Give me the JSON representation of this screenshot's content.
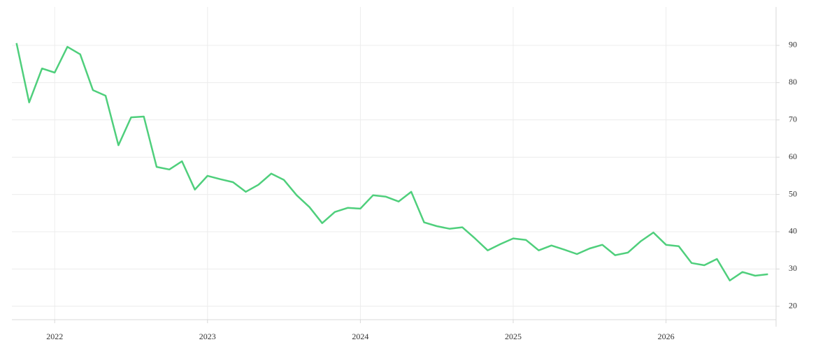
{
  "chart_data": {
    "type": "line",
    "x": [
      2021.75,
      2021.833,
      2021.917,
      2022,
      2022.083,
      2022.167,
      2022.25,
      2022.333,
      2022.417,
      2022.5,
      2022.583,
      2022.667,
      2022.75,
      2022.833,
      2022.917,
      2023,
      2023.083,
      2023.167,
      2023.25,
      2023.333,
      2023.417,
      2023.5,
      2023.583,
      2023.667,
      2023.75,
      2023.833,
      2023.917,
      2024,
      2024.083,
      2024.167,
      2024.25,
      2024.333,
      2024.417,
      2024.5,
      2024.583,
      2024.667,
      2024.75,
      2024.833,
      2024.917,
      2025,
      2025.083,
      2025.167,
      2025.25,
      2025.333,
      2025.417,
      2025.5,
      2025.583,
      2025.667,
      2025.75,
      2025.833,
      2025.917,
      2026,
      2026.083,
      2026.167,
      2026.25,
      2026.333,
      2026.417,
      2026.5,
      2026.583,
      2026.667
    ],
    "series": [
      {
        "color": "#4fcf7c",
        "values": [
          90.6,
          74.7,
          83.8,
          82.7,
          89.6,
          87.6,
          78.0,
          76.5,
          63.2,
          70.7,
          70.9,
          57.4,
          56.7,
          58.9,
          51.3,
          55.0,
          54.1,
          53.3,
          50.7,
          52.6,
          55.6,
          53.9,
          49.8,
          46.6,
          42.3,
          45.3,
          46.4,
          46.2,
          49.8,
          49.4,
          48.1,
          50.7,
          42.5,
          41.5,
          40.8,
          41.2,
          38.2,
          35.0,
          36.7,
          38.2,
          37.8,
          35.0,
          36.3,
          35.2,
          34.0,
          35.5,
          36.5,
          33.7,
          34.4,
          37.4,
          39.8,
          36.5,
          36.1,
          31.6,
          31.0,
          32.7,
          26.9,
          29.2,
          28.2,
          28.6
        ]
      }
    ],
    "xlim": [
      2021.72,
      2026.72
    ],
    "xticks": [
      2022,
      2023,
      2024,
      2025,
      2026
    ],
    "ylim": [
      16.4,
      100.3
    ],
    "yticks": [
      20,
      30,
      40,
      50,
      60,
      70,
      80,
      90
    ],
    "grid": true
  }
}
